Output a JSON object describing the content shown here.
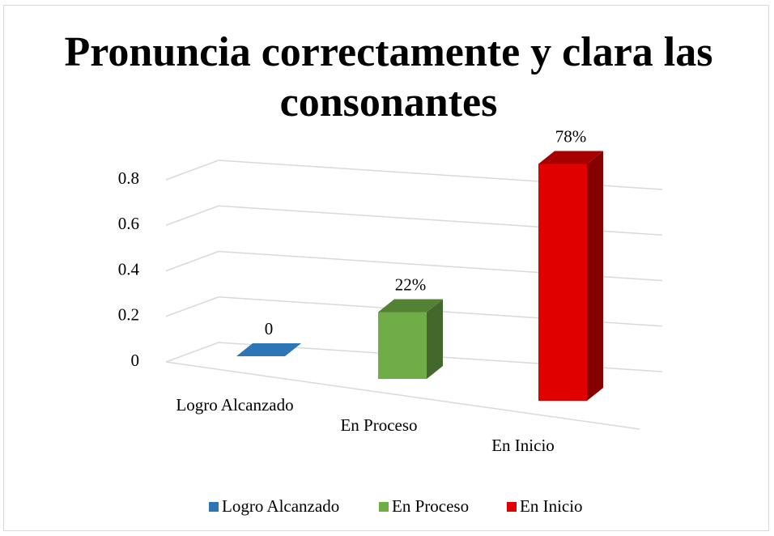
{
  "chart_data": {
    "type": "bar3d",
    "title": "Pronuncia correctamente y clara las consonantes",
    "categories": [
      "Logro Alcanzado",
      "En Proceso",
      "En Inicio"
    ],
    "values": [
      0,
      0.22,
      0.78
    ],
    "value_labels": [
      "0",
      "22%",
      "78%"
    ],
    "colors": [
      "#2e75b6",
      "#70ad47",
      "#e00000"
    ],
    "ylim": [
      0,
      0.8
    ],
    "yticks": [
      0,
      0.2,
      0.4,
      0.6,
      0.8
    ],
    "grid": true,
    "legend": "bottom"
  }
}
